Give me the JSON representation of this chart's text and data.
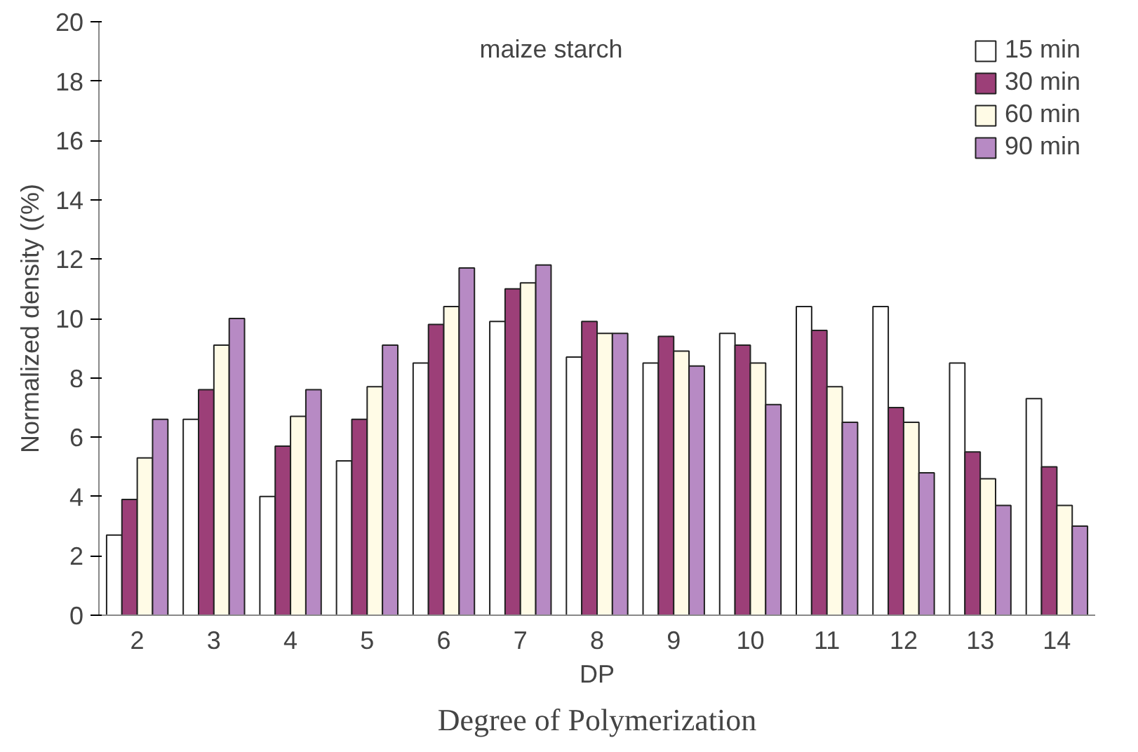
{
  "chart_data": {
    "type": "bar",
    "title": "maize starch",
    "xlabel": "DP",
    "ylabel": "Normalized density ((%)",
    "annotations": [
      "Degree of Polymerization"
    ],
    "categories": [
      "2",
      "3",
      "4",
      "5",
      "6",
      "7",
      "8",
      "9",
      "10",
      "11",
      "12",
      "13",
      "14"
    ],
    "series": [
      {
        "name": "15 min",
        "color": "#ffffff",
        "values": [
          2.7,
          6.6,
          4.0,
          5.2,
          8.5,
          9.9,
          8.7,
          8.5,
          9.5,
          10.4,
          10.4,
          8.5,
          7.3
        ]
      },
      {
        "name": "30 min",
        "color": "#9c3f78",
        "values": [
          3.9,
          7.6,
          5.7,
          6.6,
          9.8,
          11.0,
          9.9,
          9.4,
          9.1,
          9.6,
          7.0,
          5.5,
          5.0
        ]
      },
      {
        "name": "60 min",
        "color": "#fffbe6",
        "values": [
          5.3,
          9.1,
          6.7,
          7.7,
          10.4,
          11.2,
          9.5,
          8.9,
          8.5,
          7.7,
          6.5,
          4.6,
          3.7
        ]
      },
      {
        "name": "90 min",
        "color": "#b78ac4",
        "values": [
          6.6,
          10.0,
          7.6,
          9.1,
          11.7,
          11.8,
          9.5,
          8.4,
          7.1,
          6.5,
          4.8,
          3.7,
          3.0
        ]
      }
    ],
    "ylim": [
      0,
      20
    ],
    "yticks": [
      0,
      2,
      4,
      6,
      8,
      10,
      12,
      14,
      16,
      18,
      20
    ],
    "grid": false,
    "legend": "top right"
  }
}
